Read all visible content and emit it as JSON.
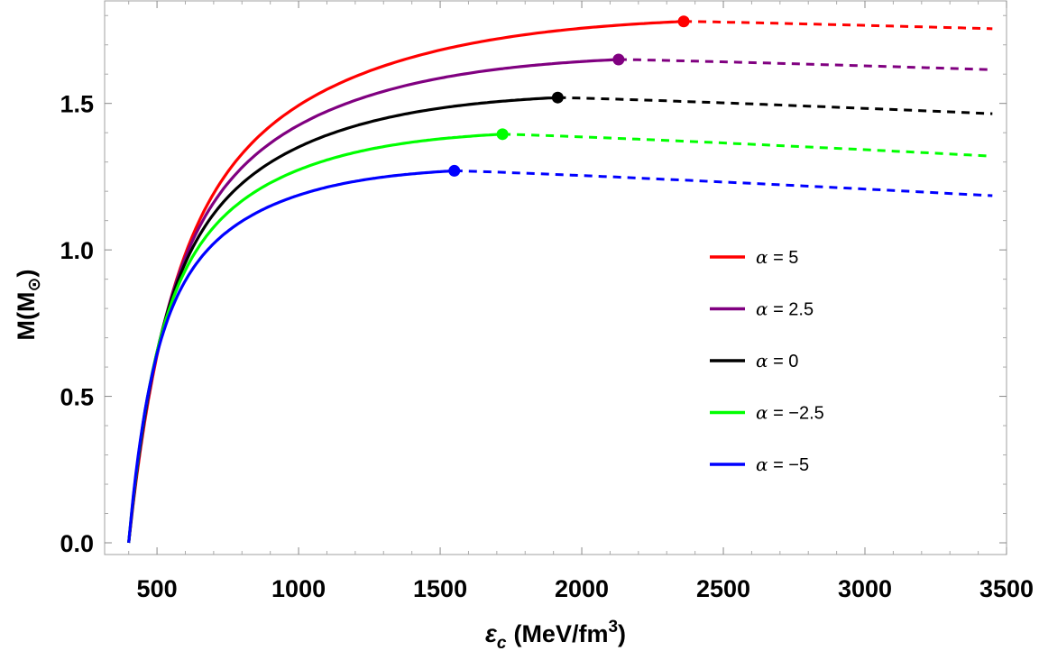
{
  "chart_data": {
    "type": "line",
    "title": "",
    "xlabel_main": "ε",
    "xlabel_sub": "c",
    "xlabel_unit": "(MeV/fm",
    "xlabel_exp": "3",
    "xlabel_close": ")",
    "ylabel_main": "M(M",
    "ylabel_sun": "⊙",
    "ylabel_close": ")",
    "xlim": [
      315,
      3500
    ],
    "ylim": [
      -0.04,
      1.85
    ],
    "xticks": [
      500,
      1000,
      1500,
      2000,
      2500,
      3000,
      3500
    ],
    "yticks": [
      0.0,
      0.5,
      1.0,
      1.5
    ],
    "xtick_labels": [
      "500",
      "1000",
      "1500",
      "2000",
      "2500",
      "3000",
      "3500"
    ],
    "ytick_labels": [
      "0.0",
      "0.5",
      "1.0",
      "1.5"
    ],
    "legend_position": "right-center",
    "series": [
      {
        "name": "α = 5",
        "greek": "α",
        "rest": " = 5",
        "color": "#ff0000",
        "max_x": 2360,
        "max_y": 1.78,
        "end_y": 1.755
      },
      {
        "name": "α = 2.5",
        "greek": "α",
        "rest": " = 2.5",
        "color": "#800080",
        "max_x": 2130,
        "max_y": 1.65,
        "end_y": 1.615
      },
      {
        "name": "α = 0",
        "greek": "α",
        "rest": " = 0",
        "color": "#000000",
        "max_x": 1915,
        "max_y": 1.52,
        "end_y": 1.465
      },
      {
        "name": "α = −2.5",
        "greek": "α",
        "rest": " = −2.5",
        "color": "#00ff00",
        "max_x": 1720,
        "max_y": 1.395,
        "end_y": 1.32
      },
      {
        "name": "α = −5",
        "greek": "α",
        "rest": " = −5",
        "color": "#0000ff",
        "max_x": 1550,
        "max_y": 1.27,
        "end_y": 1.185
      }
    ],
    "start_x": 400,
    "start_y": 0.0,
    "end_x": 3450,
    "dashed_after_max": true
  }
}
